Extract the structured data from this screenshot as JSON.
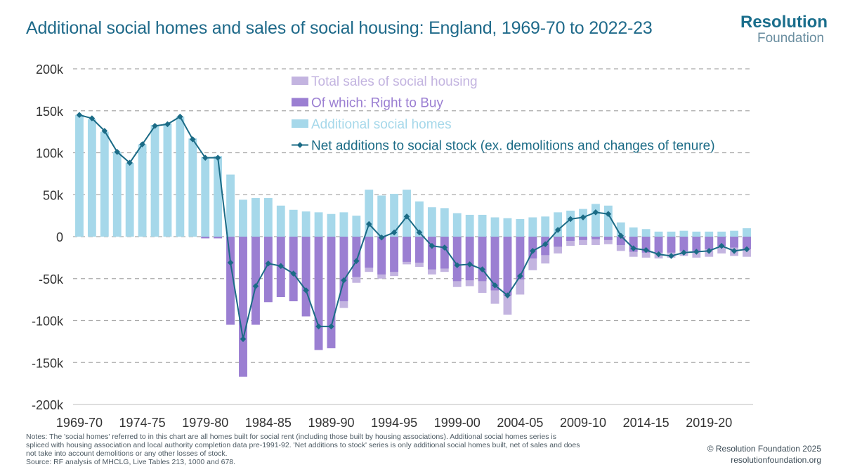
{
  "header": {
    "title": "Additional social homes and sales of social housing: England, 1969-70 to 2022-23",
    "logo_main": "Resolution",
    "logo_sub": "Foundation"
  },
  "footer": {
    "notes": [
      "Notes: The 'social homes' referred to in this chart are all homes built for social rent (including those built by housing associations). Additional social homes series is",
      "spliced with housing association and local authority completion data pre-1991-92. 'Net additions to stock' series is only additional social homes built, net of sales and does",
      "not take into account demolitions or any other losses of stock.",
      "Source: RF analysis of MHCLG, Live Tables 213, 1000 and 678."
    ],
    "copyright": "© Resolution Foundation 2025",
    "website": "resolutionfoundation.org"
  },
  "colors": {
    "total_sales": "#c3b4e0",
    "right_to_buy": "#9b7fd2",
    "additional": "#a6d8ea",
    "net_line": "#1b6b86",
    "grid": "#a9a9a9",
    "tick_text": "#333333"
  },
  "chart_data": {
    "type": "bar",
    "ylim": [
      -200000,
      200000
    ],
    "y_ticks": [
      200000,
      150000,
      100000,
      50000,
      0,
      -50000,
      -100000,
      -150000,
      -200000
    ],
    "y_tick_labels": [
      "200k",
      "150k",
      "100k",
      "50k",
      "0",
      "-50k",
      "-100k",
      "-150k",
      "-200k"
    ],
    "x_tick_labels": [
      "1969-70",
      "1974-75",
      "1979-80",
      "1984-85",
      "1989-90",
      "1994-95",
      "1999-00",
      "2004-05",
      "2009-10",
      "2014-15",
      "2019-20"
    ],
    "x_tick_every": 5,
    "grid": true,
    "legend_position": "top-center",
    "categories": [
      "1969-70",
      "1970-71",
      "1971-72",
      "1972-73",
      "1973-74",
      "1974-75",
      "1975-76",
      "1976-77",
      "1977-78",
      "1978-79",
      "1979-80",
      "1980-81",
      "1981-82",
      "1982-83",
      "1983-84",
      "1984-85",
      "1985-86",
      "1986-87",
      "1987-88",
      "1988-89",
      "1989-90",
      "1990-91",
      "1991-92",
      "1992-93",
      "1993-94",
      "1994-95",
      "1995-96",
      "1996-97",
      "1997-98",
      "1998-99",
      "1999-00",
      "2000-01",
      "2001-02",
      "2002-03",
      "2003-04",
      "2004-05",
      "2005-06",
      "2006-07",
      "2007-08",
      "2008-09",
      "2009-10",
      "2010-11",
      "2011-12",
      "2012-13",
      "2013-14",
      "2014-15",
      "2015-16",
      "2016-17",
      "2017-18",
      "2018-19",
      "2019-20",
      "2020-21",
      "2021-22",
      "2022-23"
    ],
    "series": [
      {
        "name": "Total sales of social housing",
        "type": "bar",
        "values": [
          0,
          0,
          0,
          0,
          0,
          0,
          0,
          0,
          0,
          0,
          -2000,
          -2000,
          -105000,
          -167000,
          -105000,
          -78000,
          -72000,
          -77000,
          -95000,
          -135000,
          -133000,
          -85000,
          -55000,
          -42000,
          -50000,
          -47000,
          -33000,
          -36000,
          -45000,
          -42000,
          -60000,
          -59000,
          -67000,
          -80000,
          -93000,
          -69000,
          -40000,
          -32000,
          -20000,
          -11000,
          -10000,
          -10000,
          -9000,
          -17000,
          -24000,
          -25000,
          -26000,
          -25000,
          -23000,
          -25000,
          -24000,
          -20000,
          -23000,
          -24000
        ]
      },
      {
        "name": "Of which: Right to Buy",
        "type": "bar",
        "values": [
          0,
          0,
          0,
          0,
          0,
          0,
          0,
          0,
          0,
          0,
          -2000,
          -2000,
          -105000,
          -167000,
          -105000,
          -78000,
          -72000,
          -77000,
          -95000,
          -135000,
          -133000,
          -77000,
          -48000,
          -37000,
          -45000,
          -42000,
          -30000,
          -31000,
          -39000,
          -38000,
          -53000,
          -52000,
          -53000,
          -64000,
          -70000,
          -51000,
          -26000,
          -22000,
          -12000,
          -5000,
          -4000,
          -3000,
          -4000,
          -10000,
          -18000,
          -19000,
          -19000,
          -19000,
          -17000,
          -17000,
          -15000,
          -11000,
          -13000,
          -15000
        ]
      },
      {
        "name": "Additional social homes",
        "type": "bar",
        "values": [
          145000,
          140000,
          125000,
          101000,
          88000,
          110000,
          133000,
          135000,
          143000,
          117000,
          95000,
          96000,
          74000,
          44000,
          46000,
          46000,
          37000,
          32000,
          30000,
          29000,
          27000,
          29000,
          25000,
          56000,
          49000,
          51000,
          56000,
          42000,
          35000,
          34000,
          28000,
          26000,
          26000,
          23000,
          22000,
          21000,
          23000,
          24000,
          29000,
          31000,
          33000,
          39000,
          37000,
          17000,
          11000,
          9000,
          6000,
          6000,
          7000,
          6000,
          6000,
          6000,
          7000,
          10000
        ]
      },
      {
        "name": "Net additions to social stock (ex. demolitions and changes of tenure)",
        "type": "line",
        "values": [
          145000,
          141000,
          126000,
          101000,
          88000,
          110000,
          132000,
          134000,
          143000,
          116000,
          94000,
          94000,
          -31000,
          -122000,
          -59000,
          -32000,
          -35000,
          -44000,
          -64000,
          -107000,
          -107000,
          -52000,
          -29000,
          15000,
          -1000,
          5000,
          24000,
          5000,
          -11000,
          -13000,
          -34000,
          -33000,
          -39000,
          -58000,
          -70000,
          -47000,
          -17000,
          -9000,
          8000,
          21000,
          23000,
          29000,
          27000,
          1000,
          -14000,
          -16000,
          -21000,
          -23000,
          -19000,
          -18000,
          -17000,
          -11000,
          -17000,
          -15000
        ]
      }
    ]
  }
}
